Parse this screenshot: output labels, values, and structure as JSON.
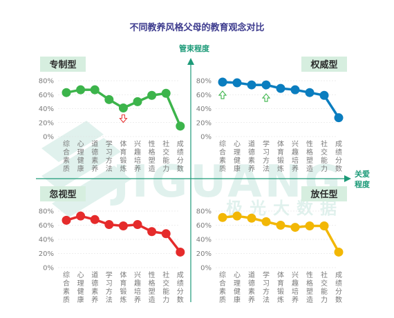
{
  "title": "不同教养风格父母的教育观念对比",
  "axes": {
    "vertical_label": "管束程度",
    "horizontal_label_line1": "关爱",
    "horizontal_label_line2": "程度"
  },
  "watermark": {
    "latin": "JIGUANG",
    "chinese": "极光大数据"
  },
  "colors": {
    "axis": "#1c9a78",
    "badge": "#d6eedf",
    "grid": "#dddddd"
  },
  "chart_data": [
    {
      "type": "line",
      "quadrant": "top-left",
      "title": "专制型",
      "color": "#3cb44b",
      "categories": [
        "综合素质",
        "心理健康",
        "道德素养",
        "学习方法",
        "体育锻炼",
        "兴趣培养",
        "性格塑造",
        "社交能力",
        "成绩分数"
      ],
      "values": [
        63,
        67,
        67,
        53,
        41,
        50,
        59,
        62,
        15
      ],
      "ylim": [
        0,
        80
      ],
      "yticks": [
        "0%",
        "20%",
        "40%",
        "60%",
        "80%"
      ],
      "markers": [
        {
          "index": 4,
          "direction": "down",
          "color": "#e83a3a"
        }
      ]
    },
    {
      "type": "line",
      "quadrant": "top-right",
      "title": "权威型",
      "color": "#0a7dbf",
      "categories": [
        "综合素质",
        "心理健康",
        "道德素养",
        "学习方法",
        "体育锻炼",
        "兴趣培养",
        "性格塑造",
        "社交能力",
        "成绩分数"
      ],
      "values": [
        78,
        77,
        74,
        74,
        69,
        67,
        63,
        59,
        27
      ],
      "ylim": [
        0,
        80
      ],
      "yticks": [
        "0%",
        "20%",
        "40%",
        "60%",
        "80%"
      ],
      "markers": [
        {
          "index": 0,
          "direction": "up",
          "color": "#3cb44b"
        },
        {
          "index": 3,
          "direction": "up",
          "color": "#3cb44b"
        }
      ]
    },
    {
      "type": "line",
      "quadrant": "bottom-left",
      "title": "忽视型",
      "color": "#e52b2b",
      "categories": [
        "综合素质",
        "心理健康",
        "道德素养",
        "学习方法",
        "体育锻炼",
        "兴趣培养",
        "性格塑造",
        "社交能力",
        "成绩分数"
      ],
      "values": [
        67,
        73,
        68,
        61,
        59,
        61,
        51,
        48,
        22
      ],
      "ylim": [
        0,
        80
      ],
      "yticks": [
        "0%",
        "20%",
        "40%",
        "60%",
        "80%"
      ],
      "markers": []
    },
    {
      "type": "line",
      "quadrant": "bottom-right",
      "title": "放任型",
      "color": "#f2b705",
      "categories": [
        "综合素质",
        "心理健康",
        "道德素养",
        "学习方法",
        "体育锻炼",
        "兴趣培养",
        "性格塑造",
        "社交能力",
        "成绩分数"
      ],
      "values": [
        71,
        73,
        70,
        65,
        60,
        57,
        59,
        59,
        22
      ],
      "ylim": [
        0,
        80
      ],
      "yticks": [
        "0%",
        "20%",
        "40%",
        "60%",
        "80%"
      ],
      "markers": []
    }
  ]
}
